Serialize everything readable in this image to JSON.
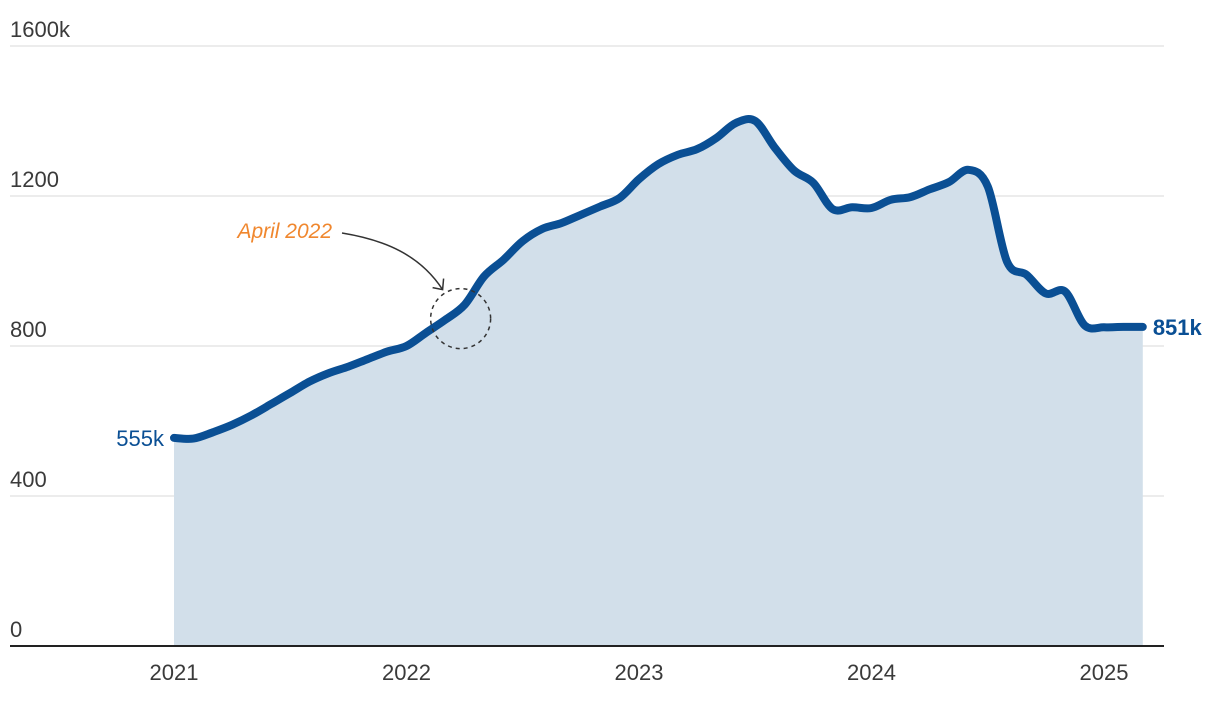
{
  "chart_data": {
    "type": "area",
    "y_ticks": [
      "0",
      "400",
      "800",
      "1200",
      "1600k"
    ],
    "y_tick_values": [
      0,
      400,
      800,
      1200,
      1600
    ],
    "ylim": [
      0,
      1600
    ],
    "x_ticks": [
      "2021",
      "2022",
      "2023",
      "2024",
      "2025"
    ],
    "x_tick_values": [
      2021,
      2022,
      2023,
      2024,
      2025
    ],
    "grid": true,
    "series": [
      {
        "x": [
          2021.0,
          2021.083,
          2021.167,
          2021.25,
          2021.333,
          2021.417,
          2021.5,
          2021.583,
          2021.667,
          2021.75,
          2021.833,
          2021.917,
          2022.0,
          2022.083,
          2022.167,
          2022.25,
          2022.333,
          2022.417,
          2022.5,
          2022.583,
          2022.667,
          2022.75,
          2022.833,
          2022.917,
          2023.0,
          2023.083,
          2023.167,
          2023.25,
          2023.333,
          2023.417,
          2023.5,
          2023.583,
          2023.667,
          2023.75,
          2023.833,
          2023.917,
          2024.0,
          2024.083,
          2024.167,
          2024.25,
          2024.333,
          2024.417,
          2024.5,
          2024.583,
          2024.667,
          2024.75,
          2024.833,
          2024.917,
          2025.0,
          2025.083,
          2025.167
        ],
        "values": [
          555,
          553,
          570,
          590,
          615,
          645,
          675,
          705,
          728,
          745,
          765,
          785,
          800,
          835,
          870,
          910,
          985,
          1030,
          1080,
          1112,
          1128,
          1150,
          1172,
          1195,
          1245,
          1285,
          1310,
          1325,
          1355,
          1395,
          1400,
          1330,
          1268,
          1235,
          1165,
          1170,
          1168,
          1190,
          1197,
          1218,
          1237,
          1270,
          1225,
          1025,
          990,
          940,
          945,
          855,
          850,
          851,
          851
        ],
        "color": "#0a4f94",
        "fill": "#d2dfea"
      }
    ],
    "start_label": "555k",
    "end_label": "851k",
    "annotation": {
      "text": "April 2022",
      "x": 2022.25,
      "y": 865,
      "color": "#f0872e"
    }
  }
}
